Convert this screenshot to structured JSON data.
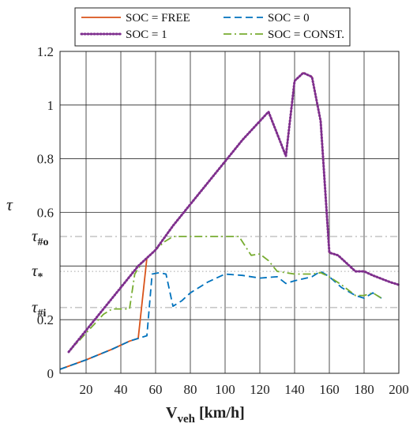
{
  "chart_data": {
    "type": "line",
    "xlabel_main": "V",
    "xlabel_sub": "veh",
    "xlabel_unit": " [km/h]",
    "ylabel": "τ",
    "xlim": [
      5,
      200
    ],
    "ylim": [
      0,
      1.2
    ],
    "xticks": [
      20,
      40,
      60,
      80,
      100,
      120,
      140,
      160,
      180,
      200
    ],
    "yticks": [
      0,
      0.2,
      0.4,
      0.6,
      0.8,
      1,
      1.2
    ],
    "ytick_labels": [
      "0",
      "0.2",
      "",
      "0.6",
      "0.8",
      "1",
      "1.2"
    ],
    "grid": true,
    "legend_position": "top",
    "series": [
      {
        "name": "SOC = FREE",
        "color": "#d95319",
        "dash": "solid",
        "points": [
          [
            5,
            0.015
          ],
          [
            20,
            0.05
          ],
          [
            35,
            0.09
          ],
          [
            45,
            0.12
          ],
          [
            50,
            0.13
          ],
          [
            55,
            0.43
          ],
          [
            60,
            0.46
          ],
          [
            70,
            0.55
          ],
          [
            80,
            0.63
          ],
          [
            90,
            0.71
          ],
          [
            100,
            0.79
          ],
          [
            110,
            0.87
          ],
          [
            125,
            0.975
          ],
          [
            135,
            0.81
          ],
          [
            140,
            1.09
          ],
          [
            145,
            1.12
          ],
          [
            150,
            1.105
          ],
          [
            155,
            0.94
          ],
          [
            160,
            0.45
          ],
          [
            165,
            0.44
          ],
          [
            170,
            0.41
          ],
          [
            175,
            0.38
          ],
          [
            180,
            0.38
          ],
          [
            185,
            0.365
          ],
          [
            195,
            0.34
          ],
          [
            200,
            0.33
          ]
        ]
      },
      {
        "name": "SOC = 0",
        "color": "#0072bd",
        "dash": "dashed",
        "points": [
          [
            5,
            0.015
          ],
          [
            20,
            0.05
          ],
          [
            35,
            0.09
          ],
          [
            45,
            0.12
          ],
          [
            50,
            0.13
          ],
          [
            55,
            0.14
          ],
          [
            58,
            0.37
          ],
          [
            62,
            0.375
          ],
          [
            66,
            0.37
          ],
          [
            70,
            0.25
          ],
          [
            75,
            0.27
          ],
          [
            80,
            0.3
          ],
          [
            90,
            0.34
          ],
          [
            100,
            0.37
          ],
          [
            110,
            0.365
          ],
          [
            120,
            0.355
          ],
          [
            130,
            0.36
          ],
          [
            135,
            0.335
          ],
          [
            140,
            0.345
          ],
          [
            150,
            0.36
          ],
          [
            155,
            0.38
          ],
          [
            160,
            0.36
          ],
          [
            167,
            0.32
          ],
          [
            175,
            0.29
          ],
          [
            180,
            0.28
          ],
          [
            185,
            0.3
          ],
          [
            190,
            0.28
          ]
        ]
      },
      {
        "name": "SOC = 1",
        "color": "#7e2f8e",
        "dash": "dotted",
        "points": [
          [
            10,
            0.08
          ],
          [
            20,
            0.16
          ],
          [
            30,
            0.24
          ],
          [
            40,
            0.32
          ],
          [
            50,
            0.4
          ],
          [
            55,
            0.43
          ],
          [
            60,
            0.46
          ],
          [
            70,
            0.55
          ],
          [
            80,
            0.63
          ],
          [
            90,
            0.71
          ],
          [
            100,
            0.79
          ],
          [
            110,
            0.87
          ],
          [
            125,
            0.975
          ],
          [
            135,
            0.81
          ],
          [
            140,
            1.09
          ],
          [
            145,
            1.12
          ],
          [
            150,
            1.105
          ],
          [
            155,
            0.94
          ],
          [
            160,
            0.45
          ],
          [
            165,
            0.44
          ],
          [
            170,
            0.41
          ],
          [
            175,
            0.38
          ],
          [
            180,
            0.38
          ],
          [
            185,
            0.365
          ],
          [
            195,
            0.34
          ],
          [
            200,
            0.33
          ]
        ]
      },
      {
        "name": "SOC = CONST.",
        "color": "#77ac30",
        "dash": "dashdot",
        "points": [
          [
            10,
            0.08
          ],
          [
            20,
            0.15
          ],
          [
            30,
            0.22
          ],
          [
            35,
            0.24
          ],
          [
            40,
            0.24
          ],
          [
            45,
            0.24
          ],
          [
            48,
            0.37
          ],
          [
            52,
            0.41
          ],
          [
            55,
            0.43
          ],
          [
            60,
            0.46
          ],
          [
            65,
            0.49
          ],
          [
            70,
            0.51
          ],
          [
            80,
            0.51
          ],
          [
            90,
            0.51
          ],
          [
            100,
            0.51
          ],
          [
            108,
            0.51
          ],
          [
            115,
            0.44
          ],
          [
            120,
            0.445
          ],
          [
            125,
            0.42
          ],
          [
            130,
            0.38
          ],
          [
            140,
            0.37
          ],
          [
            150,
            0.37
          ],
          [
            155,
            0.375
          ],
          [
            160,
            0.36
          ],
          [
            167,
            0.33
          ],
          [
            175,
            0.29
          ],
          [
            180,
            0.29
          ],
          [
            185,
            0.3
          ],
          [
            190,
            0.28
          ]
        ]
      }
    ],
    "reference_lines": [
      {
        "label_main": "τ",
        "label_sub": "#o",
        "value": 0.51,
        "style": "dashdot"
      },
      {
        "label_main": "τ",
        "label_sub": "*",
        "value": 0.38,
        "style": "dotted"
      },
      {
        "label_main": "τ",
        "label_sub": "#i",
        "value": 0.245,
        "style": "dashdot"
      }
    ]
  }
}
